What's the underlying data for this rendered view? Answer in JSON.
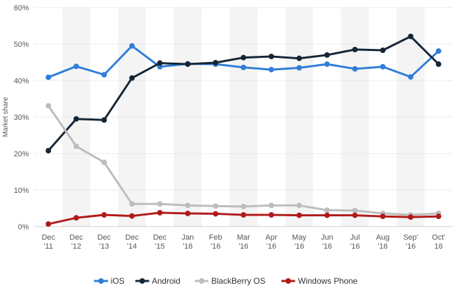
{
  "chart_data": {
    "type": "line",
    "ylabel": "Market share",
    "ylim": [
      0,
      60
    ],
    "yticks": [
      "0%",
      "10%",
      "20%",
      "30%",
      "40%",
      "50%",
      "60%"
    ],
    "ytick_values": [
      0,
      10,
      20,
      30,
      40,
      50,
      60
    ],
    "grid": true,
    "legend_position": "bottom-center",
    "categories": [
      [
        "Dec",
        "'11"
      ],
      [
        "Dec",
        "'12"
      ],
      [
        "Dec",
        "'13"
      ],
      [
        "Dec",
        "'14"
      ],
      [
        "Dec",
        "'15"
      ],
      [
        "Jan",
        "'16"
      ],
      [
        "Feb",
        "'16"
      ],
      [
        "Mar",
        "'16"
      ],
      [
        "Apr",
        "'16"
      ],
      [
        "May",
        "'16"
      ],
      [
        "Jun",
        "'16"
      ],
      [
        "Jul",
        "'16"
      ],
      [
        "Aug",
        "'16"
      ],
      [
        "Sep'",
        "'16"
      ],
      [
        "Oct'",
        "16"
      ]
    ],
    "series": [
      {
        "name": "iOS",
        "color": "#2f7ed8",
        "values": [
          40.9,
          43.9,
          41.6,
          49.5,
          43.8,
          44.6,
          44.5,
          43.6,
          43.0,
          43.5,
          44.5,
          43.2,
          43.8,
          41.0,
          48.1
        ]
      },
      {
        "name": "Android",
        "color": "#152636",
        "values": [
          20.8,
          29.5,
          29.2,
          40.7,
          44.8,
          44.5,
          44.9,
          46.3,
          46.6,
          46.1,
          47.0,
          48.5,
          48.3,
          52.1,
          44.5
        ]
      },
      {
        "name": "BlackBerry OS",
        "color": "#bdbdbd",
        "values": [
          33.1,
          22.0,
          17.6,
          6.2,
          6.2,
          5.8,
          5.6,
          5.5,
          5.8,
          5.8,
          4.5,
          4.4,
          3.6,
          3.2,
          3.6
        ]
      },
      {
        "name": "Windows Phone",
        "color": "#b11a1a",
        "values": [
          0.7,
          2.4,
          3.2,
          2.9,
          3.8,
          3.6,
          3.5,
          3.2,
          3.2,
          3.1,
          3.1,
          3.1,
          2.8,
          2.6,
          2.8
        ]
      }
    ]
  }
}
